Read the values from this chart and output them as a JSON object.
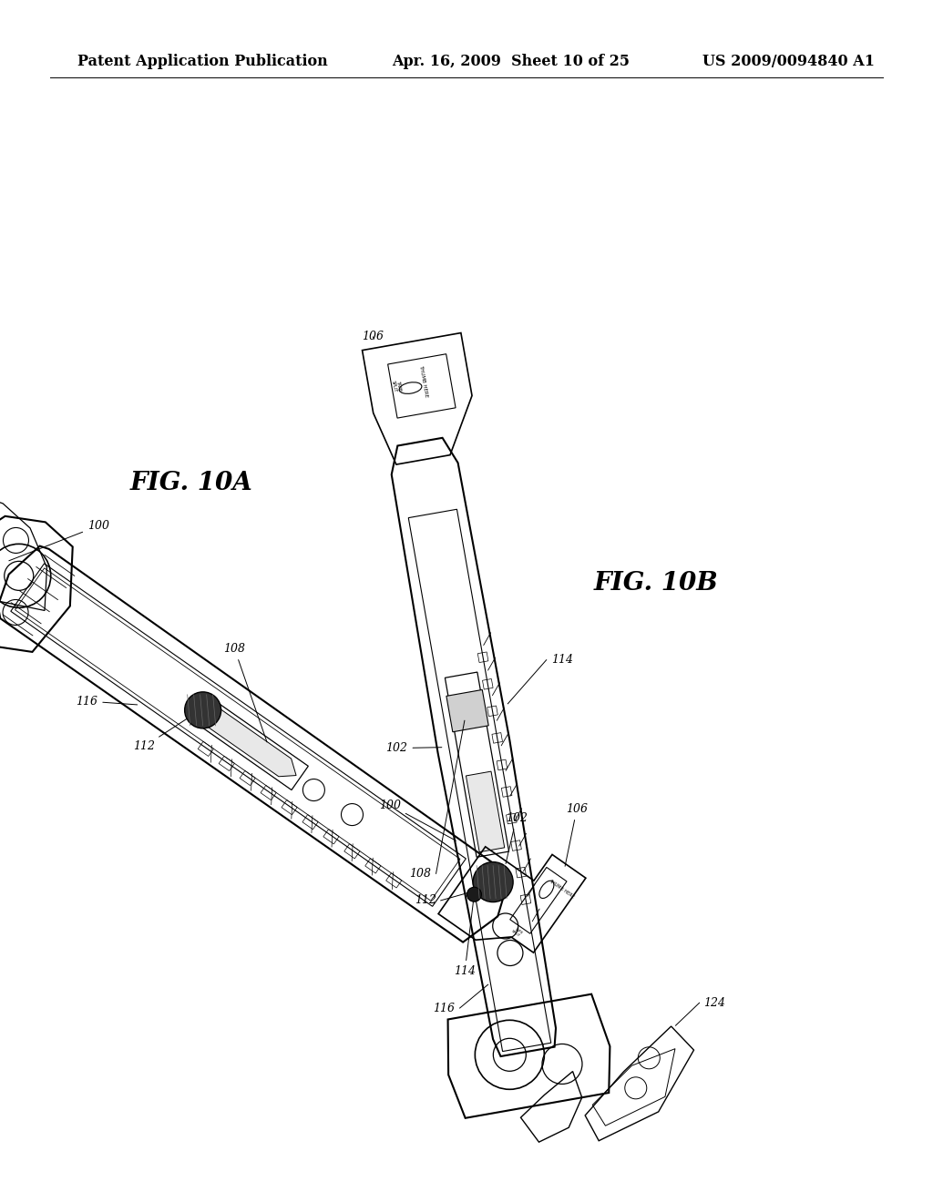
{
  "bg_color": "#ffffff",
  "header_left": "Patent Application Publication",
  "header_center": "Apr. 16, 2009  Sheet 10 of 25",
  "header_right": "US 2009/0094840 A1",
  "header_fontsize": 11.5,
  "fig10a_label": "FIG. 10A",
  "fig10b_label": "FIG. 10B",
  "line_color": "#000000",
  "drawing_lw": 1.0
}
